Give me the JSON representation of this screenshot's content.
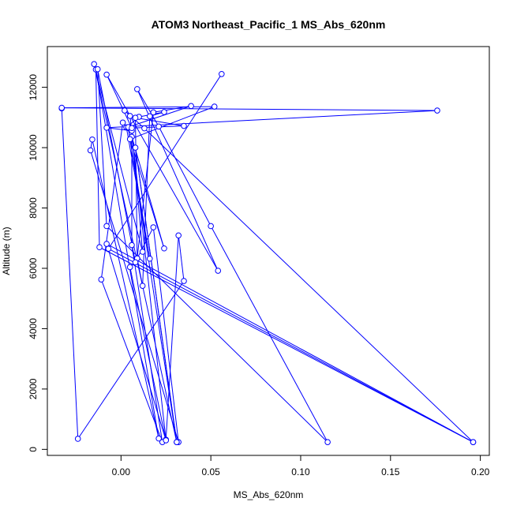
{
  "chart_data": {
    "type": "line",
    "title": "ATOM3 Northeast_Pacific_1 MS_Abs_620nm",
    "xlabel": "MS_Abs_620nm",
    "ylabel": "Altitude (m)",
    "xlim": [
      -0.041,
      0.205
    ],
    "ylim": [
      -200,
      13350
    ],
    "xticks": [
      0.0,
      0.05,
      0.1,
      0.15,
      0.2
    ],
    "xtick_labels": [
      "0.00",
      "0.05",
      "0.10",
      "0.15",
      "0.20"
    ],
    "yticks": [
      0,
      2000,
      4000,
      6000,
      8000,
      10000,
      12000
    ],
    "ytick_labels": [
      "0",
      "2000",
      "4000",
      "6000",
      "8000",
      "10000",
      "12000"
    ],
    "grid": false,
    "colors": {
      "series": "#0000ff"
    },
    "series": [
      {
        "marker": "open-circle",
        "points": [
          [
            -0.033,
            11300
          ],
          [
            -0.024,
            350
          ],
          [
            0.035,
            5580
          ],
          [
            0.032,
            7090
          ],
          [
            0.025,
            320
          ],
          [
            0.005,
            11050
          ],
          [
            0.002,
            11230
          ],
          [
            0.013,
            10640
          ],
          [
            0.196,
            240
          ],
          [
            -0.012,
            6700
          ],
          [
            -0.014,
            12590
          ],
          [
            0.021,
            360
          ],
          [
            -0.016,
            10270
          ],
          [
            -0.017,
            9910
          ],
          [
            0.032,
            240
          ],
          [
            0.018,
            7360
          ],
          [
            0.009,
            6330
          ],
          [
            0.012,
            5420
          ],
          [
            0.016,
            11040
          ],
          [
            0.024,
            11180
          ],
          [
            0.01,
            11020
          ],
          [
            0.003,
            10670
          ],
          [
            0.016,
            6320
          ],
          [
            0.004,
            10650
          ],
          [
            0.001,
            10830
          ],
          [
            -0.011,
            5630
          ],
          [
            0.023,
            240
          ],
          [
            0.006,
            6770
          ],
          [
            0.006,
            10360
          ],
          [
            0.024,
            6660
          ],
          [
            0.005,
            10280
          ],
          [
            0.052,
            11360
          ],
          [
            -0.033,
            11320
          ],
          [
            0.176,
            11230
          ],
          [
            -0.008,
            10660
          ],
          [
            0.006,
            10560
          ],
          [
            0.012,
            6550
          ],
          [
            -0.015,
            12770
          ],
          [
            0.031,
            240
          ],
          [
            0.008,
            10000
          ],
          [
            0.031,
            240
          ],
          [
            0.004,
            10680
          ],
          [
            0.039,
            11380
          ],
          [
            0.018,
            11170
          ],
          [
            0.009,
            6330
          ],
          [
            0.008,
            10990
          ],
          [
            0.035,
            10720
          ],
          [
            0.006,
            10650
          ],
          [
            -0.008,
            12420
          ],
          [
            0.054,
            5920
          ],
          [
            0.009,
            11940
          ],
          [
            0.021,
            10700
          ],
          [
            0.05,
            7400
          ],
          [
            0.115,
            240
          ],
          [
            -0.008,
            7400
          ],
          [
            -0.013,
            12600
          ],
          [
            0.008,
            6200
          ],
          [
            0.005,
            6040
          ],
          [
            0.025,
            300
          ],
          [
            -0.008,
            6810
          ],
          [
            0.196,
            240
          ],
          [
            -0.007,
            6650
          ],
          [
            0.056,
            12440
          ]
        ]
      }
    ]
  }
}
